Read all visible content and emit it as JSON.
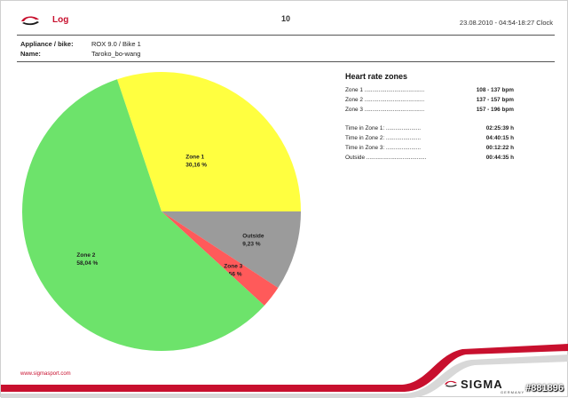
{
  "header": {
    "title": "Log",
    "page_number": "10",
    "datetime": "23.08.2010 - 04:54-18:27 Clock"
  },
  "info": {
    "appliance_label": "Appliance / bike:",
    "appliance_value": "ROX 9.0 / Bike 1",
    "name_label": "Name:",
    "name_value": "Taroko_bo-wang"
  },
  "colors": {
    "zone1": "#ffff40",
    "zone2": "#6de36b",
    "zone3": "#ff5a5a",
    "outside": "#9b9b9b",
    "brand": "#c8102e"
  },
  "chart_data": {
    "type": "pie",
    "series": [
      {
        "name": "Zone 1",
        "label": "Zone 1",
        "percent_label": "30,16 %",
        "value": 30.16
      },
      {
        "name": "Outside",
        "label": "Outside",
        "percent_label": "9,23 %",
        "value": 9.23
      },
      {
        "name": "Zone 3",
        "label": "Zone 3",
        "percent_label": "2,56 %",
        "value": 2.56
      },
      {
        "name": "Zone 2",
        "label": "Zone 2",
        "percent_label": "58,04 %",
        "value": 58.04
      }
    ]
  },
  "zones": {
    "title": "Heart rate zones",
    "ranges": [
      {
        "label": "Zone 1 ......................................",
        "value": "108 - 137 bpm"
      },
      {
        "label": "Zone 2 ......................................",
        "value": "137 - 157 bpm"
      },
      {
        "label": "Zone 3 ......................................",
        "value": "157 - 196 bpm"
      }
    ],
    "times": [
      {
        "label": "Time in Zone 1: ......................",
        "value": "02:25:39 h"
      },
      {
        "label": "Time in Zone 2: ......................",
        "value": "04:40:15 h"
      },
      {
        "label": "Time in Zone 3: ......................",
        "value": "00:12:22 h"
      },
      {
        "label": "Outside ......................................",
        "value": "00:44:35 h"
      }
    ]
  },
  "footer": {
    "url": "www.sigmasport.com",
    "brand": "SIGMA",
    "brand_sub": "GERMANY",
    "image_tag": "#881896"
  }
}
